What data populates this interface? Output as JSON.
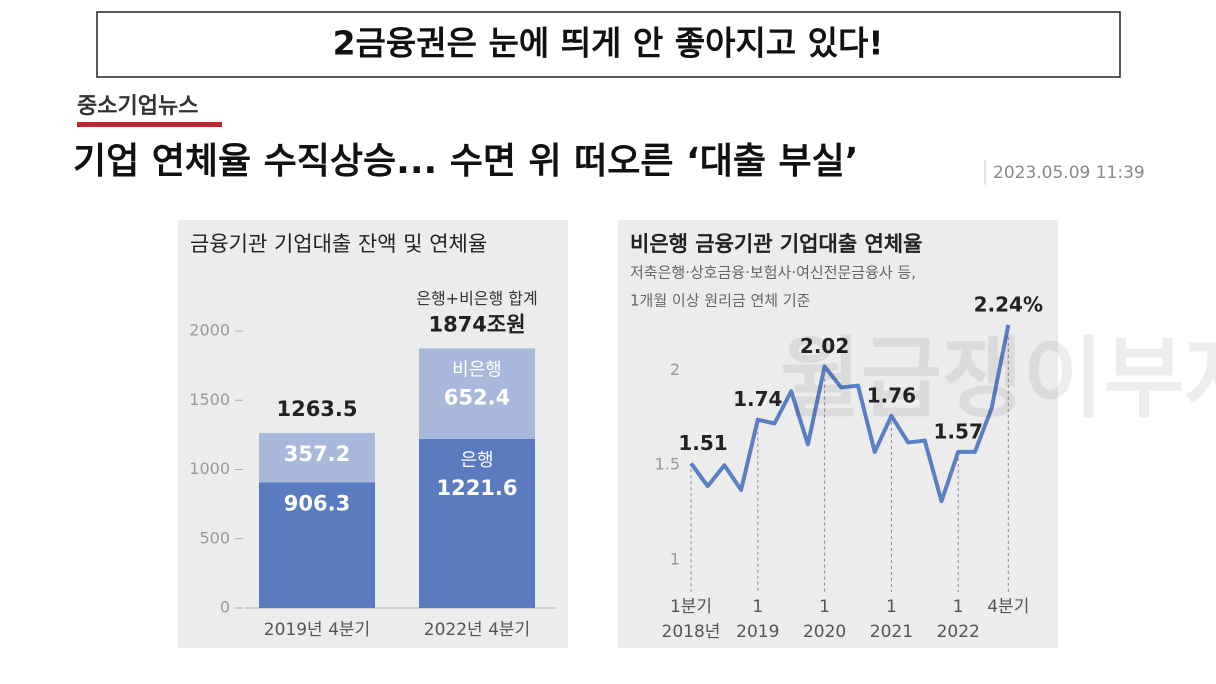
{
  "header": {
    "title": "2금융권은 눈에 띄게 안 좋아지고 있다!"
  },
  "source": "중소기업뉴스",
  "headline": "기업 연체율 수직상승... 수면 위 떠오른 ‘대출 부실’",
  "timestamp": "2023.05.09 11:39",
  "watermark": "월급쟁이부자들",
  "chart_data": [
    {
      "type": "bar",
      "stacked": true,
      "title": "금융기관 기업대출 잔액 및 연체율",
      "categories": [
        "2019년 4분기",
        "2022년 4분기"
      ],
      "series": [
        {
          "name": "은행",
          "color": "#5b7bc0",
          "values": [
            906.3,
            1221.6
          ]
        },
        {
          "name": "비은행",
          "color": "#a8b8db",
          "values": [
            357.2,
            652.4
          ]
        }
      ],
      "totals": {
        "values": [
          1263.5,
          1874
        ],
        "value_labels": [
          "1263.5",
          "1874조원"
        ]
      },
      "total_note": "은행+비은행 합계",
      "ylim": [
        0,
        2000
      ],
      "yticks": [
        0,
        500,
        1000,
        1500,
        2000
      ]
    },
    {
      "type": "line",
      "title": "비은행 금융기관 기업대출 연체율",
      "subtitle": [
        "저축은행·상호금융·보험사·여신전문금융사 등,",
        "1개월 이상 원리금 연체 기준"
      ],
      "categories": [
        "1분기",
        null,
        null,
        null,
        "1",
        null,
        null,
        null,
        "1",
        null,
        null,
        null,
        "1",
        null,
        null,
        null,
        "1",
        null,
        null,
        "4분기"
      ],
      "category_years": [
        "2018년",
        null,
        null,
        null,
        "2019",
        null,
        null,
        null,
        "2020",
        null,
        null,
        null,
        "2021",
        null,
        null,
        null,
        "2022",
        null,
        null,
        null
      ],
      "color": "#5a7fc4",
      "values": [
        1.51,
        1.39,
        1.5,
        1.37,
        1.74,
        1.72,
        1.89,
        1.61,
        2.02,
        1.91,
        1.92,
        1.57,
        1.76,
        1.62,
        1.63,
        1.31,
        1.57,
        1.57,
        1.8,
        2.24
      ],
      "value_labels": [
        "1.51",
        null,
        null,
        null,
        "1.74",
        null,
        null,
        null,
        "2.02",
        null,
        null,
        null,
        "1.76",
        null,
        null,
        null,
        "1.57",
        null,
        null,
        "2.24%"
      ],
      "ylim": [
        0.9,
        2.35
      ],
      "yticks": [
        1.0,
        1.5,
        2.0
      ]
    }
  ]
}
